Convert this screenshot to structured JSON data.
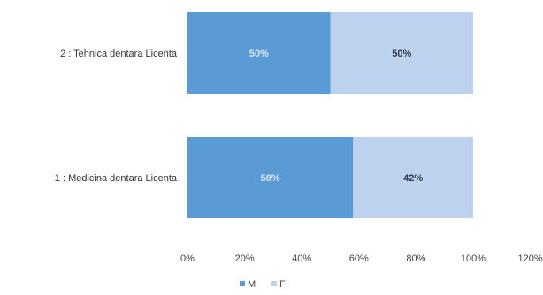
{
  "chart_data": {
    "type": "bar",
    "orientation": "horizontal",
    "stacked": true,
    "categories": [
      "2 : Tehnica dentara Licenta",
      "1 : Medicina dentara Licenta"
    ],
    "series": [
      {
        "name": "M",
        "values": [
          50,
          58
        ],
        "labels": [
          "50%",
          "58%"
        ],
        "color": "#5b9bd5",
        "label_color": "#d9e6f5"
      },
      {
        "name": "F",
        "values": [
          50,
          42
        ],
        "labels": [
          "50%",
          "42%"
        ],
        "color": "#bdd2ee",
        "label_color": "#2f3a4a"
      }
    ],
    "xlim": [
      0,
      120
    ],
    "xticks": [
      0,
      20,
      40,
      60,
      80,
      100,
      120
    ],
    "xtick_labels": [
      "0%",
      "20%",
      "40%",
      "60%",
      "80%",
      "100%",
      "120%"
    ],
    "title": "",
    "xlabel": "",
    "ylabel": "",
    "grid": false,
    "legend": {
      "position": "bottom",
      "entries": [
        "M",
        "F"
      ]
    }
  }
}
